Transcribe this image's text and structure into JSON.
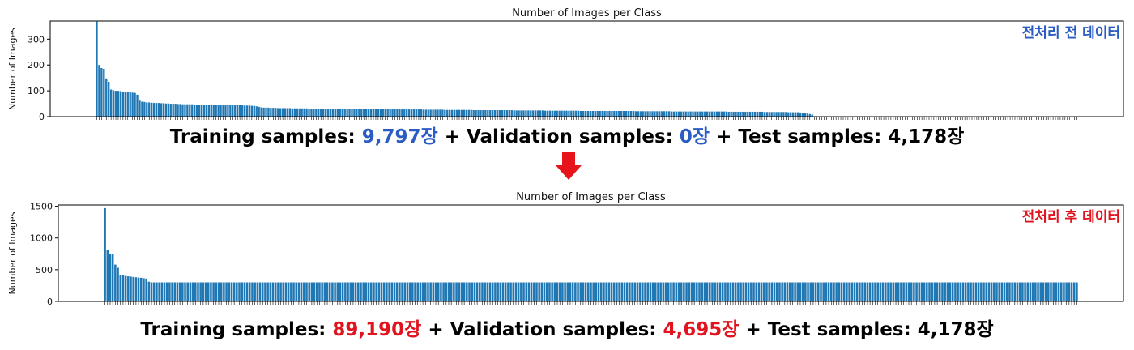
{
  "chart_data": [
    {
      "type": "bar",
      "title": "Number of Images per Class",
      "ylabel": "Number of Images",
      "ylim": [
        0,
        370
      ],
      "yticks": [
        0,
        100,
        200,
        300
      ],
      "x_tick_labels_visible": false,
      "annotation": "전처리 전 데이터",
      "annotation_color": "#2a5cc4",
      "bar_color": "#1f77b4",
      "values": [
        368,
        200,
        188,
        185,
        148,
        135,
        105,
        102,
        100,
        100,
        99,
        97,
        95,
        94,
        94,
        93,
        92,
        85,
        62,
        58,
        57,
        55,
        55,
        54,
        53,
        53,
        53,
        52,
        52,
        51,
        51,
        50,
        50,
        50,
        49,
        49,
        48,
        48,
        48,
        48,
        48,
        47,
        47,
        47,
        47,
        46,
        46,
        46,
        46,
        46,
        45,
        45,
        45,
        45,
        45,
        45,
        45,
        44,
        44,
        44,
        44,
        44,
        43,
        43,
        43,
        42,
        42,
        40,
        38,
        36,
        35,
        35,
        35,
        34,
        34,
        34,
        33,
        33,
        33,
        33,
        33,
        33,
        32,
        32,
        32,
        32,
        32,
        32,
        32,
        31,
        31,
        31,
        31,
        31,
        31,
        31,
        31,
        31,
        31,
        31,
        31,
        31,
        31,
        30,
        30,
        30,
        30,
        30,
        30,
        30,
        30,
        30,
        30,
        30,
        30,
        30,
        30,
        30,
        30,
        30,
        30,
        29,
        29,
        29,
        29,
        29,
        29,
        28,
        28,
        28,
        28,
        28,
        28,
        28,
        28,
        28,
        28,
        27,
        27,
        27,
        27,
        27,
        27,
        27,
        27,
        27,
        26,
        26,
        26,
        26,
        26,
        26,
        26,
        26,
        26,
        26,
        26,
        26,
        25,
        25,
        25,
        25,
        25,
        25,
        25,
        25,
        25,
        25,
        25,
        25,
        25,
        25,
        25,
        25,
        25,
        24,
        24,
        24,
        24,
        24,
        24,
        24,
        24,
        24,
        24,
        24,
        24,
        24,
        23,
        23,
        23,
        23,
        23,
        23,
        23,
        23,
        23,
        23,
        23,
        23,
        23,
        23,
        23,
        22,
        22,
        22,
        22,
        22,
        22,
        22,
        22,
        22,
        22,
        22,
        22,
        22,
        22,
        22,
        22,
        22,
        22,
        22,
        22,
        22,
        22,
        22,
        21,
        21,
        21,
        21,
        21,
        21,
        21,
        21,
        21,
        21,
        21,
        21,
        21,
        21,
        21,
        20,
        20,
        20,
        20,
        20,
        20,
        20,
        20,
        20,
        20,
        20,
        20,
        20,
        20,
        20,
        20,
        20,
        20,
        20,
        20,
        20,
        20,
        20,
        20,
        19,
        19,
        19,
        19,
        19,
        19,
        19,
        19,
        19,
        19,
        19,
        19,
        19,
        19,
        19,
        18,
        18,
        18,
        18,
        18,
        18,
        18,
        18,
        18,
        18,
        17,
        17,
        17,
        17,
        17,
        16,
        15,
        14,
        12,
        10,
        8,
        0,
        0,
        0,
        0,
        0,
        0,
        0,
        0,
        0,
        0,
        0,
        0,
        0,
        0,
        0,
        0,
        0,
        0,
        0,
        0,
        0,
        0,
        0,
        0,
        0,
        0,
        0,
        0,
        0,
        0,
        0,
        0,
        0,
        0,
        0,
        0,
        0,
        0,
        0,
        0,
        0,
        0,
        0,
        0,
        0,
        0,
        0,
        0,
        0,
        0,
        0,
        0,
        0,
        0,
        0,
        0,
        0,
        0,
        0,
        0,
        0,
        0,
        0,
        0,
        0,
        0,
        0,
        0,
        0,
        0,
        0,
        0,
        0,
        0,
        0,
        0,
        0,
        0,
        0,
        0,
        0,
        0,
        0,
        0,
        0,
        0,
        0,
        0,
        0,
        0,
        0,
        0,
        0,
        0,
        0,
        0,
        0,
        0,
        0,
        0,
        0,
        0,
        0,
        0,
        0,
        0,
        0,
        0,
        0,
        0,
        0
      ]
    },
    {
      "type": "bar",
      "title": "Number of Images per Class",
      "ylabel": "Number of Images",
      "ylim": [
        0,
        1520
      ],
      "yticks": [
        0,
        500,
        1000,
        1500
      ],
      "x_tick_labels_visible": false,
      "annotation": "전처리 후 데이터",
      "annotation_color": "#e0141e",
      "bar_color": "#1f77b4",
      "values": [
        1470,
        810,
        750,
        740,
        580,
        530,
        420,
        410,
        400,
        395,
        390,
        385,
        380,
        375,
        372,
        365,
        360,
        310,
        300,
        300,
        300,
        300,
        300,
        300,
        300,
        300,
        300,
        300,
        300,
        300,
        300,
        300,
        300,
        300,
        300,
        300,
        300,
        300,
        300,
        300,
        300,
        300,
        300,
        300,
        300,
        300,
        300,
        300,
        300,
        300,
        300,
        300,
        300,
        300,
        300,
        300,
        300,
        300,
        300,
        300,
        300,
        300,
        300,
        300,
        300,
        300,
        300,
        300,
        300,
        300,
        300,
        300,
        300,
        300,
        300,
        300,
        300,
        300,
        300,
        300,
        300,
        300,
        300,
        300,
        300,
        300,
        300,
        300,
        300,
        300,
        300,
        300,
        300,
        300,
        300,
        300,
        300,
        300,
        300,
        300,
        300,
        300,
        300,
        300,
        300,
        300,
        300,
        300,
        300,
        300,
        300,
        300,
        300,
        300,
        300,
        300,
        300,
        300,
        300,
        300,
        300,
        300,
        300,
        300,
        300,
        300,
        300,
        300,
        300,
        300,
        300,
        300,
        300,
        300,
        300,
        300,
        300,
        300,
        300,
        300,
        300,
        300,
        300,
        300,
        300,
        300,
        300,
        300,
        300,
        300,
        300,
        300,
        300,
        300,
        300,
        300,
        300,
        300,
        300,
        300,
        300,
        300,
        300,
        300,
        300,
        300,
        300,
        300,
        300,
        300,
        300,
        300,
        300,
        300,
        300,
        300,
        300,
        300,
        300,
        300,
        300,
        300,
        300,
        300,
        300,
        300,
        300,
        300,
        300,
        300,
        300,
        300,
        300,
        300,
        300,
        300,
        300,
        300,
        300,
        300,
        300,
        300,
        300,
        300,
        300,
        300,
        300,
        300,
        300,
        300,
        300,
        300,
        300,
        300,
        300,
        300,
        300,
        300,
        300,
        300,
        300,
        300,
        300,
        300,
        300,
        300,
        300,
        300,
        300,
        300,
        300,
        300,
        300,
        300,
        300,
        300,
        300,
        300,
        300,
        300,
        300,
        300,
        300,
        300,
        300,
        300,
        300,
        300,
        300,
        300,
        300,
        300,
        300,
        300,
        300,
        300,
        300,
        300,
        300,
        300,
        300,
        300,
        300,
        300,
        300,
        300,
        300,
        300,
        300,
        300,
        300,
        300,
        300,
        300,
        300,
        300,
        300,
        300,
        300,
        300,
        300,
        300,
        300,
        300,
        300,
        300,
        300,
        300,
        300,
        300,
        300,
        300,
        300,
        300,
        300,
        300,
        300,
        300,
        300,
        300,
        300,
        300,
        300,
        300,
        300,
        300,
        300,
        300,
        300,
        300,
        300,
        300,
        300,
        300,
        300,
        300,
        300,
        300,
        300,
        300,
        300,
        300,
        300,
        300,
        300,
        300,
        300,
        300,
        300,
        300,
        300,
        300,
        300,
        300,
        300,
        300,
        300,
        300,
        300,
        300,
        300,
        300,
        300,
        300,
        300,
        300,
        300,
        300,
        300,
        300,
        300,
        300,
        300,
        300,
        300,
        300,
        300,
        300,
        300,
        300,
        300,
        300,
        300,
        300,
        300,
        300,
        300,
        300,
        300,
        300,
        300,
        300,
        300,
        300,
        300,
        300,
        300
      ]
    }
  ],
  "captions": {
    "before": {
      "training_label": "Training samples:",
      "training_value": "9,797장",
      "validation_label": "+ Validation samples:",
      "validation_value": "0장",
      "test_label": "+ Test samples:",
      "test_value": "4,178장",
      "highlight_color": "#2a5cc4"
    },
    "after": {
      "training_label": "Training samples:",
      "training_value": "89,190장",
      "validation_label": "+ Validation samples:",
      "validation_value": "4,695장",
      "test_label": "+ Test samples:",
      "test_value": "4,178장",
      "highlight_color": "#e0141e"
    }
  },
  "arrow": {
    "icon": "arrow-down-icon",
    "color": "#e8141c"
  }
}
